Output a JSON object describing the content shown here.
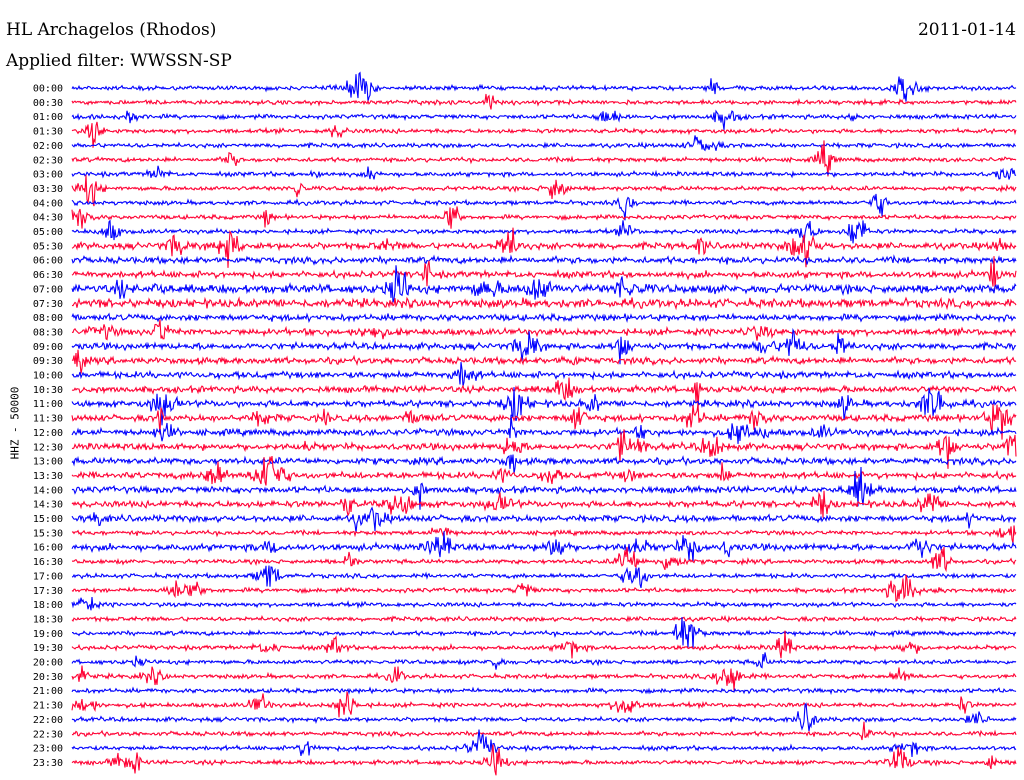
{
  "header": {
    "station": "HL Archagelos (Rhodos)",
    "date": "2011-01-14",
    "filter": "Applied filter: WWSSN-SP"
  },
  "chart_data": {
    "type": "line",
    "title": "HL Archagelos (Rhodos)",
    "subtitle": "Applied filter: WWSSN-SP",
    "date": "2011-01-14",
    "ylabel": "HHZ - 50000",
    "xlabel": "",
    "grid": false,
    "colors": {
      "even_row": "#0000ff",
      "odd_row": "#ff0033"
    },
    "rows": [
      "00:00",
      "00:30",
      "01:00",
      "01:30",
      "02:00",
      "02:30",
      "03:00",
      "03:30",
      "04:00",
      "04:30",
      "05:00",
      "05:30",
      "06:00",
      "06:30",
      "07:00",
      "07:30",
      "08:00",
      "08:30",
      "09:00",
      "09:30",
      "10:00",
      "10:30",
      "11:00",
      "11:30",
      "12:00",
      "12:30",
      "13:00",
      "13:30",
      "14:00",
      "14:30",
      "15:00",
      "15:30",
      "16:00",
      "16:30",
      "17:00",
      "17:30",
      "18:00",
      "18:30",
      "19:00",
      "19:30",
      "20:00",
      "20:30",
      "21:00",
      "21:30",
      "22:00",
      "22:30",
      "23:00",
      "23:30"
    ],
    "noise_level": [
      2,
      2,
      2,
      2,
      2,
      2,
      2,
      2,
      2,
      2,
      2,
      3,
      3,
      3,
      4,
      4,
      3,
      3,
      3,
      3,
      3,
      3,
      3,
      3,
      3,
      3,
      3,
      3,
      3,
      3,
      3,
      2,
      3,
      2,
      2,
      2,
      2,
      2,
      2,
      2,
      2,
      2,
      2,
      2,
      2,
      2,
      2,
      2
    ]
  }
}
